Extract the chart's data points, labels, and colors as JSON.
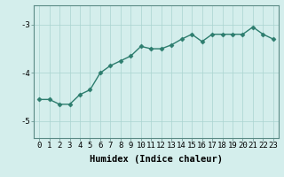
{
  "x": [
    0,
    1,
    2,
    3,
    4,
    5,
    6,
    7,
    8,
    9,
    10,
    11,
    12,
    13,
    14,
    15,
    16,
    17,
    18,
    19,
    20,
    21,
    22,
    23
  ],
  "y": [
    -4.55,
    -4.55,
    -4.65,
    -4.65,
    -4.45,
    -4.35,
    -4.0,
    -3.85,
    -3.75,
    -3.65,
    -3.45,
    -3.5,
    -3.5,
    -3.42,
    -3.3,
    -3.2,
    -3.35,
    -3.2,
    -3.2,
    -3.2,
    -3.2,
    -3.05,
    -3.2,
    -3.3
  ],
  "line_color": "#2d7d6e",
  "marker": "D",
  "marker_size": 2.5,
  "bg_color": "#d4eeec",
  "grid_color": "#aad4d0",
  "xlabel": "Humidex (Indice chaleur)",
  "ylabel": "",
  "xlim": [
    -0.5,
    23.5
  ],
  "ylim": [
    -5.35,
    -2.6
  ],
  "yticks": [
    -5,
    -4,
    -3
  ],
  "xticks": [
    0,
    1,
    2,
    3,
    4,
    5,
    6,
    7,
    8,
    9,
    10,
    11,
    12,
    13,
    14,
    15,
    16,
    17,
    18,
    19,
    20,
    21,
    22,
    23
  ],
  "xlabel_fontsize": 7.5,
  "tick_fontsize": 6.5,
  "line_width": 1.0,
  "spine_color": "#5a8a85"
}
